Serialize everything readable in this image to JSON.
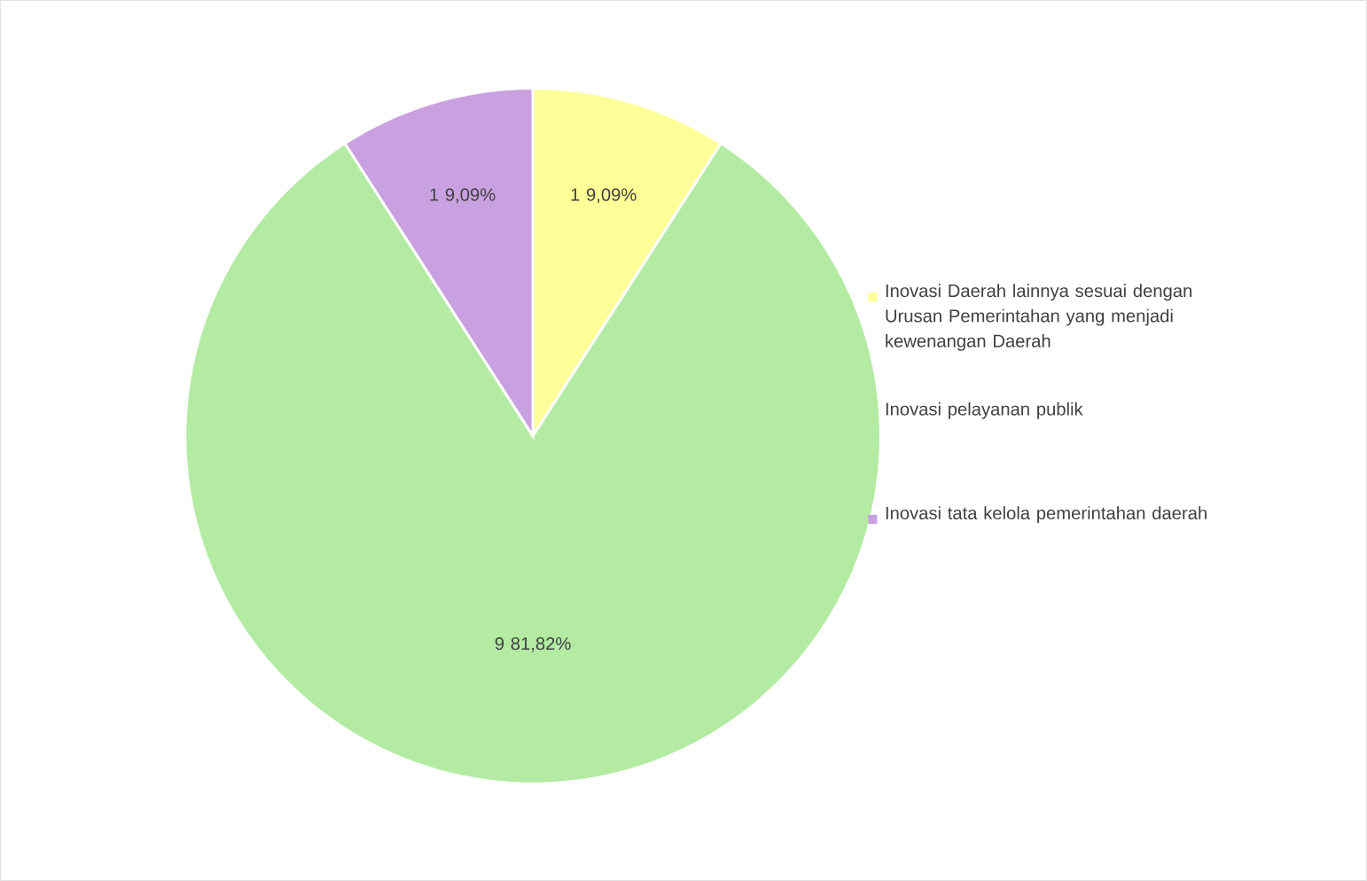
{
  "chart_data": {
    "type": "pie",
    "categories": [
      "Inovasi Daerah lainnya sesuai dengan Urusan Pemerintahan yang menjadi kewenangan Daerah",
      "Inovasi pelayanan publik",
      "Inovasi tata kelola pemerintahan daerah"
    ],
    "values": [
      1,
      9,
      1
    ],
    "colors": [
      "#ffff99",
      "#b3eba3",
      "#c9a0e0"
    ],
    "value_labels": [
      "1 9,09%",
      "9 81,82%",
      "1 9,09%"
    ],
    "legend": "right"
  }
}
